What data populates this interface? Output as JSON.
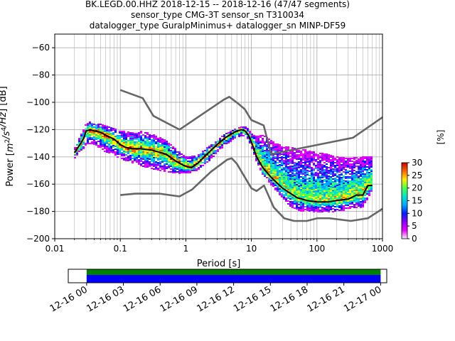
{
  "figure": {
    "title_lines": [
      "BK.LEGD.00.HHZ   2018-12-15 -- 2018-12-16  (47/47 segments)",
      "sensor_type CMG-3T sensor_sn T310034",
      "datalogger_type GuralpMinimus+ datalogger_sn MINP-DF59"
    ]
  },
  "chart_data": [
    {
      "type": "heatmap",
      "title": "BK.LEGD.00.HHZ   2018-12-15 -- 2018-12-16  (47/47 segments)",
      "xlabel": "Period [s]",
      "ylabel": "Power [m²/s⁴/Hz] [dB]",
      "x_scale": "log",
      "xlim": [
        0.01,
        1000
      ],
      "ylim": [
        -200,
        -50
      ],
      "x_ticks": [
        0.01,
        0.1,
        1,
        10,
        100,
        1000
      ],
      "x_tick_labels": [
        "0.01",
        "0.1",
        "1",
        "10",
        "100",
        "1000"
      ],
      "y_ticks": [
        -200,
        -180,
        -160,
        -140,
        -120,
        -100,
        -80,
        -60
      ],
      "y_tick_labels": [
        "−200",
        "−180",
        "−160",
        "−140",
        "−120",
        "−100",
        "−80",
        "−60"
      ],
      "grid": true,
      "colorbar": {
        "label": "[%]",
        "range": [
          0,
          30
        ],
        "ticks": [
          0,
          5,
          10,
          15,
          20,
          25,
          30
        ],
        "colormap": [
          "#f2f2f2",
          "#e600ff",
          "#8800ff",
          "#0020ff",
          "#00a6ff",
          "#00e6c8",
          "#4dff4d",
          "#ffee00",
          "#ff6600",
          "#c80000"
        ]
      },
      "mode_curve": {
        "name": "mode",
        "x": [
          0.02,
          0.025,
          0.028,
          0.03,
          0.035,
          0.04,
          0.05,
          0.06,
          0.08,
          0.1,
          0.12,
          0.15,
          0.2,
          0.3,
          0.5,
          0.7,
          0.9,
          1.0,
          1.2,
          1.5,
          2,
          3,
          4,
          5,
          6,
          7,
          8,
          9,
          10,
          12,
          15,
          20,
          30,
          40,
          50,
          70,
          100,
          150,
          200,
          300,
          400,
          500,
          600,
          700
        ],
        "y": [
          -137,
          -130,
          -126,
          -121,
          -120,
          -121,
          -122,
          -124,
          -127,
          -131,
          -133,
          -134,
          -134,
          -135,
          -138,
          -143,
          -146,
          -147,
          -148,
          -145,
          -139,
          -131,
          -126,
          -123,
          -121,
          -120,
          -121,
          -124,
          -129,
          -140,
          -148,
          -155,
          -163,
          -167,
          -170,
          -172,
          -173,
          -173,
          -172,
          -171,
          -168,
          -168,
          -161,
          -161
        ]
      },
      "density_band": {
        "x": [
          0.02,
          0.025,
          0.03,
          0.035,
          0.04,
          0.05,
          0.06,
          0.08,
          0.1,
          0.15,
          0.2,
          0.3,
          0.5,
          0.7,
          1.0,
          1.5,
          2,
          3,
          4,
          5,
          6,
          7,
          8,
          9,
          10,
          12,
          15,
          20,
          30,
          40,
          50,
          70,
          100,
          150,
          200,
          300,
          500,
          700
        ],
        "low": [
          -141,
          -136,
          -131,
          -130,
          -131,
          -134,
          -136,
          -138,
          -141,
          -144,
          -146,
          -148,
          -151,
          -152,
          -152,
          -150,
          -145,
          -137,
          -131,
          -128,
          -126,
          -124,
          -124,
          -127,
          -132,
          -143,
          -153,
          -160,
          -170,
          -176,
          -179,
          -180,
          -180,
          -180,
          -180,
          -178,
          -177,
          -164
        ],
        "high": [
          -134,
          -124,
          -116,
          -114,
          -115,
          -116,
          -117,
          -119,
          -121,
          -122,
          -121,
          -123,
          -128,
          -134,
          -140,
          -139,
          -134,
          -128,
          -123,
          -121,
          -119,
          -118,
          -118,
          -119,
          -123,
          -125,
          -124,
          -128,
          -132,
          -133,
          -134,
          -135,
          -137,
          -138,
          -140,
          -141,
          -140,
          -140
        ]
      },
      "nlnm_curve": {
        "x": [
          0.1,
          0.17,
          0.4,
          0.8,
          1.24,
          2.4,
          4.3,
          5.0,
          6.0,
          10.0,
          12.0,
          15.6,
          21.9,
          31.6,
          45.0,
          70.0,
          101,
          154,
          328,
          600,
          1000
        ],
        "y": [
          -168,
          -167,
          -167,
          -169,
          -164,
          -151,
          -142,
          -141,
          -145,
          -163,
          -165,
          -161,
          -177,
          -185,
          -187,
          -187,
          -185,
          -185,
          -187,
          -185,
          -178
        ]
      },
      "nhnm_curve": {
        "x": [
          0.1,
          0.22,
          0.32,
          0.8,
          3.8,
          4.6,
          6.3,
          7.9,
          10,
          15.4,
          20,
          354.8,
          1000
        ],
        "y": [
          -91,
          -97,
          -110,
          -120,
          -98,
          -96,
          -101,
          -105,
          -113,
          -117,
          -138,
          -126,
          -111
        ]
      }
    },
    {
      "type": "bar",
      "title": "",
      "xlabel": "",
      "ylabel": "",
      "x_tick_labels": [
        "12-16 00",
        "12-16 03",
        "12-16 06",
        "12-16 09",
        "12-16 12",
        "12-16 15",
        "12-16 18",
        "12-16 21",
        "12-17 00"
      ],
      "xlim_hours": [
        -1.5,
        24.5
      ],
      "segments": [
        {
          "name": "data coverage",
          "start_hour": 0,
          "end_hour": 24,
          "color": "#008000"
        },
        {
          "name": "PSD coverage",
          "start_hour": 0,
          "end_hour": 24,
          "color": "#0000ff"
        }
      ],
      "grid": false
    }
  ]
}
